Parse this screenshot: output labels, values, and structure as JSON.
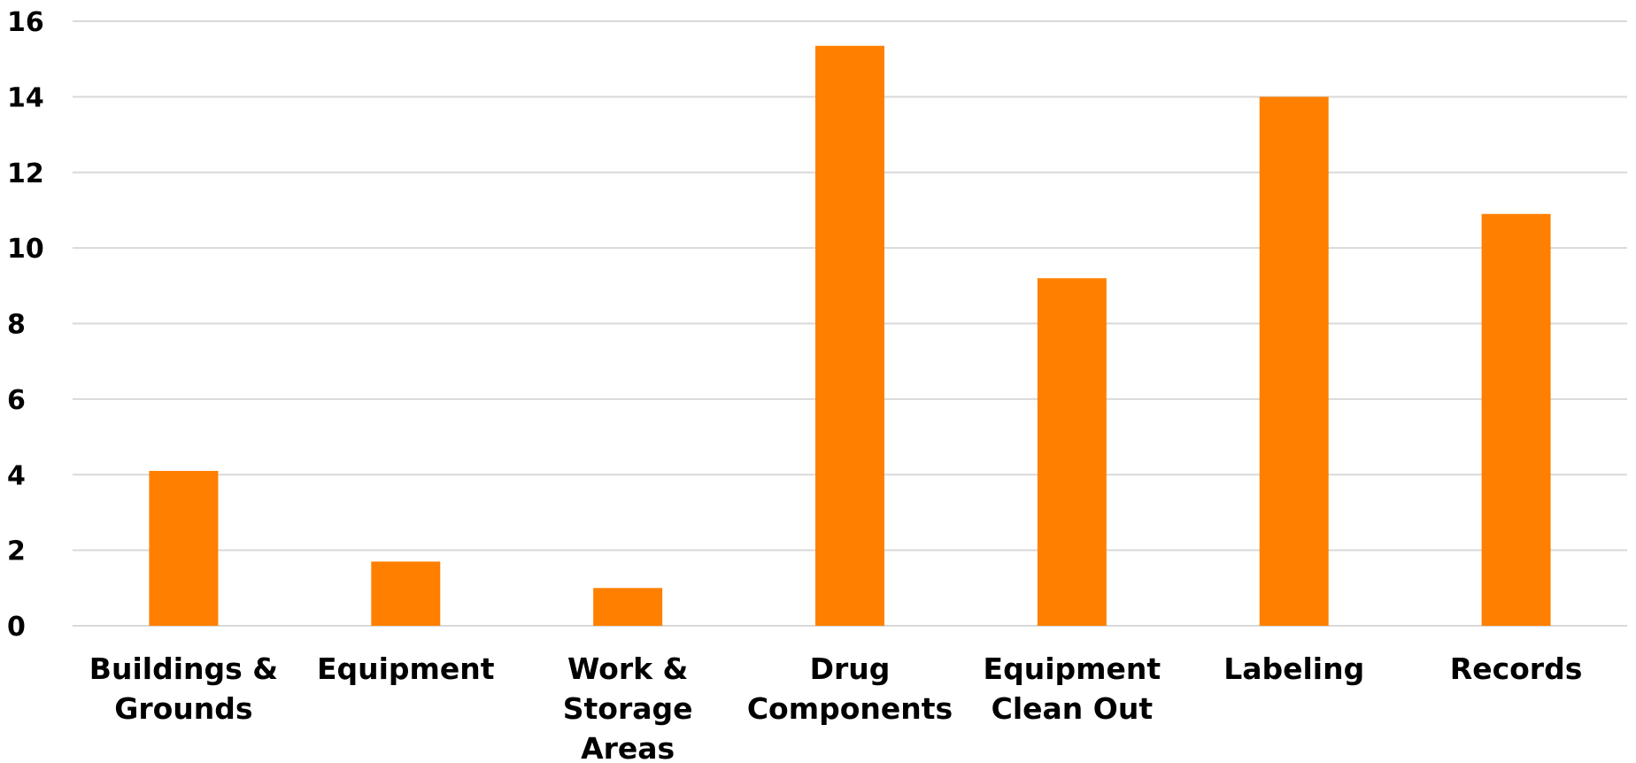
{
  "chart_data": {
    "type": "bar",
    "categories": [
      [
        "Buildings &",
        "Grounds"
      ],
      [
        "Equipment"
      ],
      [
        "Work &",
        "Storage",
        "Areas"
      ],
      [
        "Drug",
        "Components"
      ],
      [
        "Equipment",
        "Clean Out"
      ],
      [
        "Labeling"
      ],
      [
        "Records"
      ]
    ],
    "values": [
      4.1,
      1.7,
      1.0,
      15.35,
      9.2,
      14.0,
      10.9
    ],
    "ylim": [
      0,
      16
    ],
    "yticks": [
      "0",
      "2",
      "4",
      "6",
      "8",
      "10",
      "12",
      "14",
      "16"
    ],
    "grid": true,
    "bar_color": "#ff8000",
    "grid_color": "#d9d9d9"
  }
}
